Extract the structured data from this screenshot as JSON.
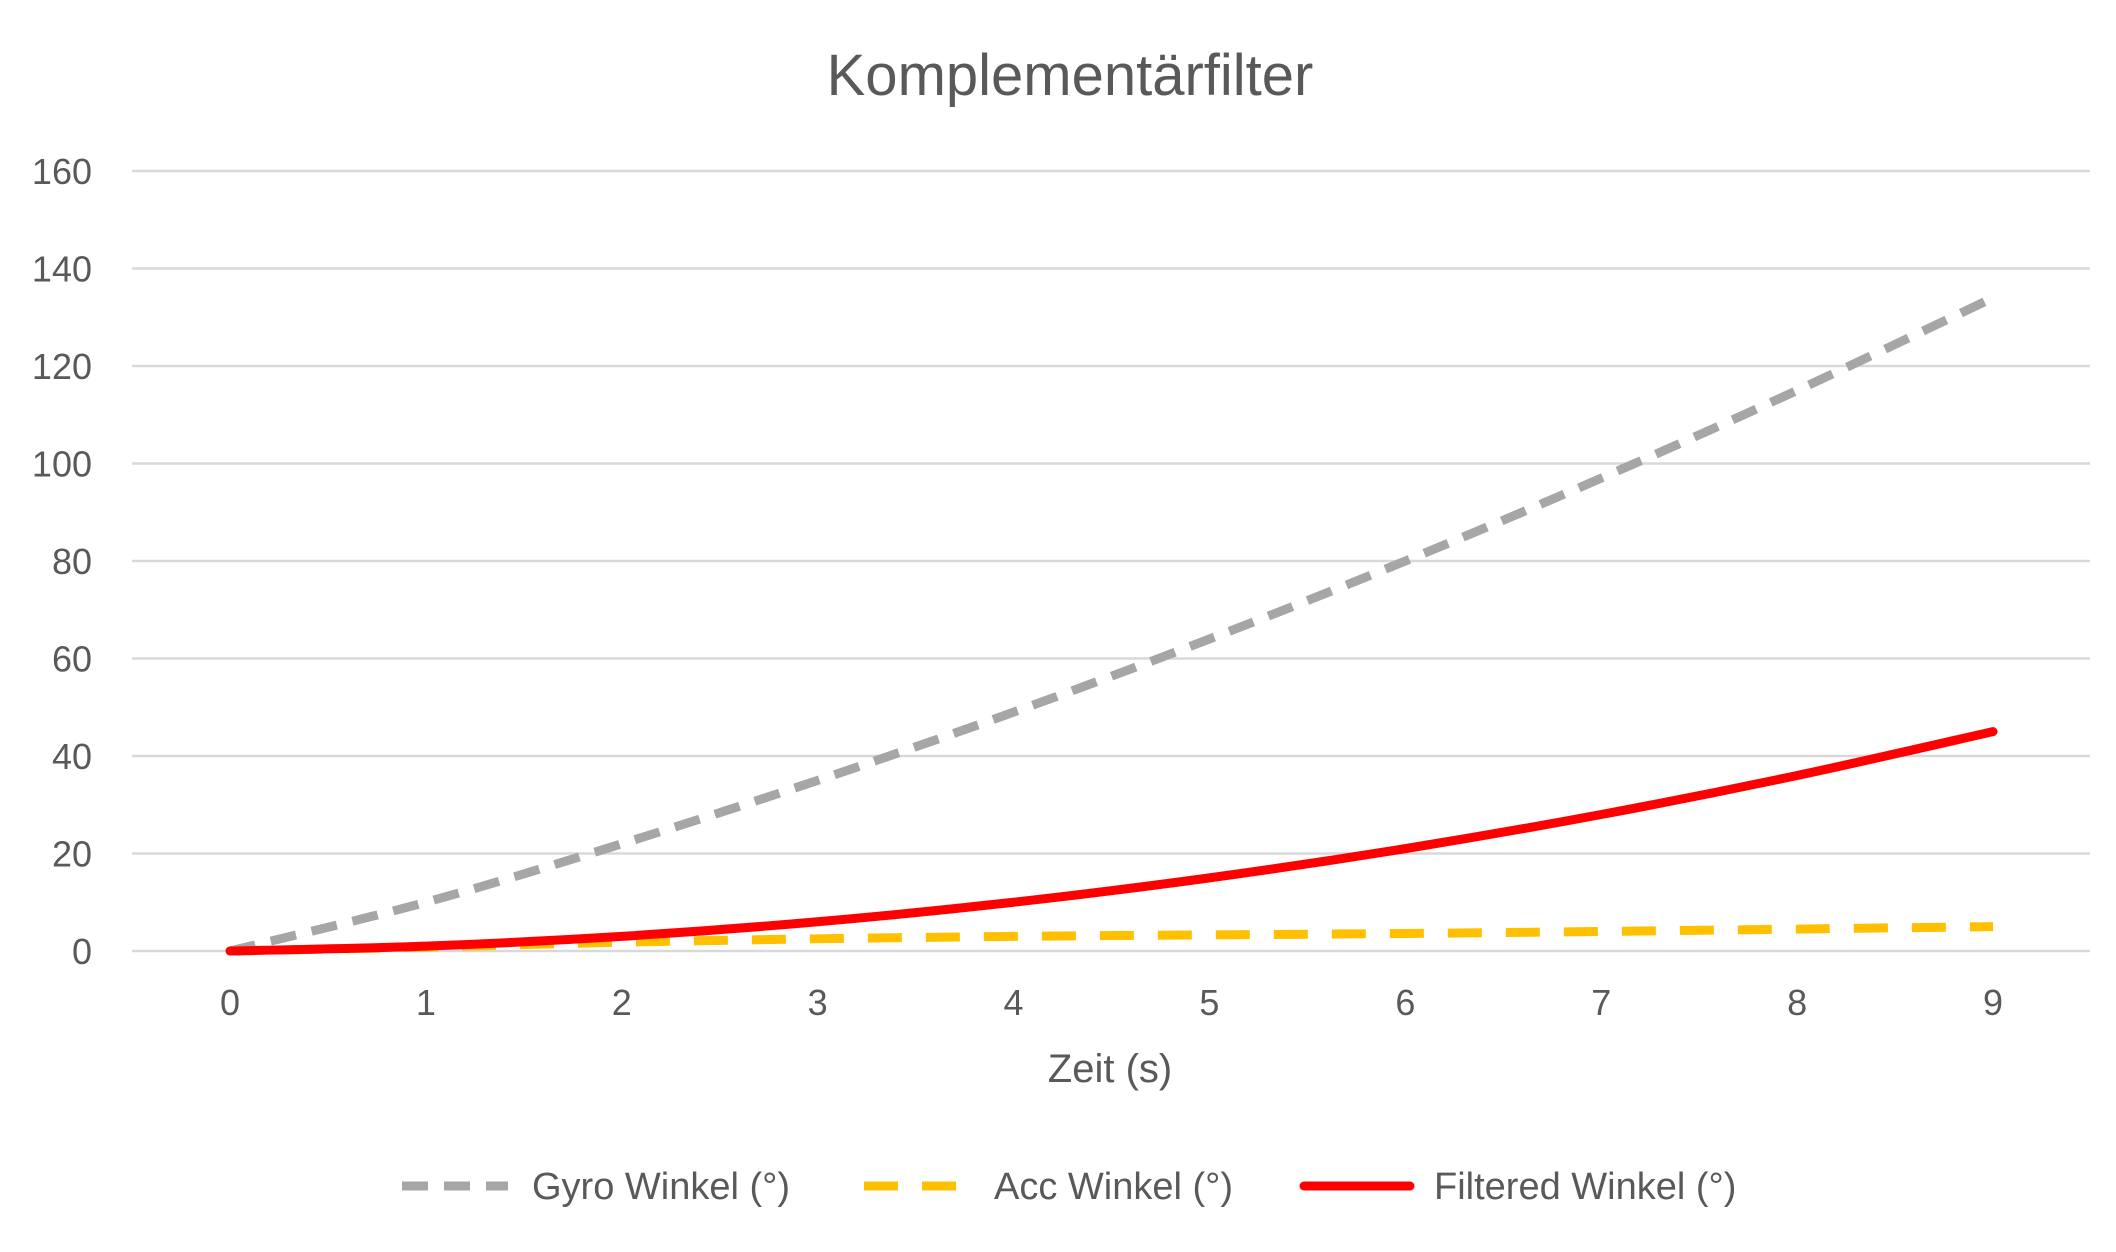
{
  "chart_data": {
    "type": "line",
    "title": "Komplementärfilter",
    "xlabel": "Zeit (s)",
    "ylabel": "",
    "x": [
      0,
      1,
      2,
      3,
      4,
      5,
      6,
      7,
      8,
      9
    ],
    "x_tick_labels": [
      "0",
      "1",
      "2",
      "3",
      "4",
      "5",
      "6",
      "7",
      "8",
      "9"
    ],
    "xlim": [
      0,
      9
    ],
    "ylim": [
      0,
      160
    ],
    "y_ticks": [
      0,
      20,
      40,
      60,
      80,
      100,
      120,
      140,
      160
    ],
    "y_tick_labels": [
      "0",
      "20",
      "40",
      "60",
      "80",
      "100",
      "120",
      "140",
      "160"
    ],
    "grid": true,
    "legend_position": "bottom",
    "series": [
      {
        "name": "Gyro Winkel (°)",
        "color": "#a6a6a6",
        "style": "dashed",
        "values": [
          0,
          10,
          22,
          35,
          49,
          64,
          80,
          97,
          115,
          134
        ]
      },
      {
        "name": "Acc Winkel (°)",
        "color": "#ffc000",
        "style": "dashed",
        "values": [
          0,
          0.8,
          1.8,
          2.5,
          3,
          3.3,
          3.6,
          4,
          4.5,
          5
        ]
      },
      {
        "name": "Filtered Winkel (°)",
        "color": "#ff0000",
        "style": "solid",
        "values": [
          0,
          1,
          3,
          6,
          10,
          15,
          21,
          28,
          36,
          45
        ]
      }
    ]
  }
}
